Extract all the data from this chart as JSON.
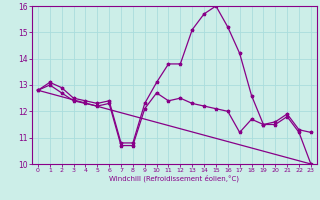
{
  "xlabel": "Windchill (Refroidissement éolien,°C)",
  "bg_color": "#cceee8",
  "line_color": "#880088",
  "grid_color": "#aadddd",
  "xlim": [
    -0.5,
    23.5
  ],
  "ylim": [
    10,
    16
  ],
  "yticks": [
    10,
    11,
    12,
    13,
    14,
    15,
    16
  ],
  "xticks": [
    0,
    1,
    2,
    3,
    4,
    5,
    6,
    7,
    8,
    9,
    10,
    11,
    12,
    13,
    14,
    15,
    16,
    17,
    18,
    19,
    20,
    21,
    22,
    23
  ],
  "series1_x": [
    0,
    1,
    2,
    3,
    4,
    5,
    6,
    7,
    8,
    9,
    10,
    11,
    12,
    13,
    14,
    15,
    16,
    17,
    18,
    19,
    20,
    21,
    22,
    23
  ],
  "series1_y": [
    12.8,
    13.1,
    12.9,
    12.5,
    12.4,
    12.3,
    12.4,
    10.8,
    10.8,
    12.3,
    13.1,
    13.8,
    13.8,
    15.1,
    15.7,
    16.0,
    15.2,
    14.2,
    12.6,
    11.5,
    11.6,
    11.9,
    11.3,
    11.2
  ],
  "series2_x": [
    0,
    1,
    2,
    3,
    4,
    5,
    6,
    7,
    8,
    9,
    10,
    11,
    12,
    13,
    14,
    15,
    16,
    17,
    18,
    19,
    20,
    21,
    22,
    23
  ],
  "series2_y": [
    12.8,
    13.0,
    12.7,
    12.4,
    12.3,
    12.2,
    12.3,
    10.7,
    10.7,
    12.1,
    12.7,
    12.4,
    12.5,
    12.3,
    12.2,
    12.1,
    12.0,
    11.2,
    11.7,
    11.5,
    11.5,
    11.8,
    11.2,
    10.0
  ],
  "series3_x": [
    0,
    23
  ],
  "series3_y": [
    12.8,
    10.0
  ]
}
